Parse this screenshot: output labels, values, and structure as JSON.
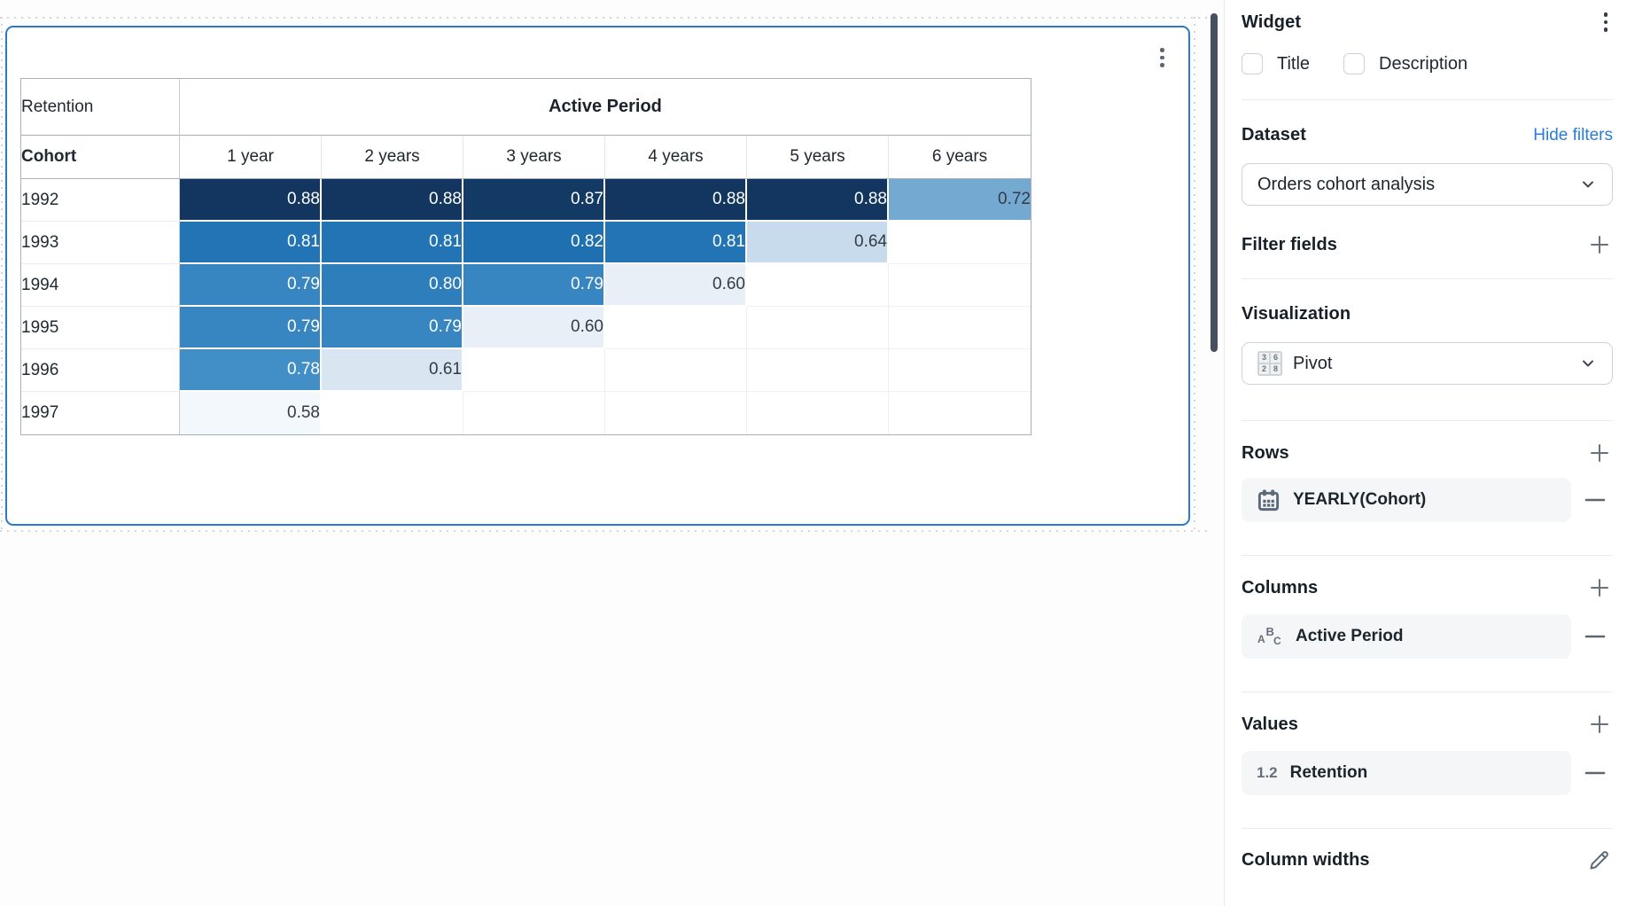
{
  "widget": {
    "table": {
      "corner_label": "Retention",
      "group_label": "Active Period",
      "row_header": "Cohort",
      "column_headers": [
        "1 year",
        "2 years",
        "3 years",
        "4 years",
        "5 years",
        "6 years"
      ],
      "rows": [
        {
          "label": "1992",
          "cells": [
            {
              "v": "0.88",
              "bg": "#12365f",
              "light": true
            },
            {
              "v": "0.88",
              "bg": "#12365f",
              "light": true
            },
            {
              "v": "0.87",
              "bg": "#133965",
              "light": true
            },
            {
              "v": "0.88",
              "bg": "#12365f",
              "light": true
            },
            {
              "v": "0.88",
              "bg": "#12365f",
              "light": true
            },
            {
              "v": "0.72",
              "bg": "#74aad1",
              "light": false
            }
          ]
        },
        {
          "label": "1993",
          "cells": [
            {
              "v": "0.81",
              "bg": "#2274b4",
              "light": true
            },
            {
              "v": "0.81",
              "bg": "#2274b4",
              "light": true
            },
            {
              "v": "0.82",
              "bg": "#1f70b1",
              "light": true
            },
            {
              "v": "0.81",
              "bg": "#2274b4",
              "light": true
            },
            {
              "v": "0.64",
              "bg": "#c7dbed",
              "light": false
            },
            null
          ]
        },
        {
          "label": "1994",
          "cells": [
            {
              "v": "0.79",
              "bg": "#3785c1",
              "light": true
            },
            {
              "v": "0.80",
              "bg": "#2e7ebc",
              "light": true
            },
            {
              "v": "0.79",
              "bg": "#3785c1",
              "light": true
            },
            {
              "v": "0.60",
              "bg": "#e8eff7",
              "light": false
            },
            null,
            null
          ]
        },
        {
          "label": "1995",
          "cells": [
            {
              "v": "0.79",
              "bg": "#3785c1",
              "light": true
            },
            {
              "v": "0.79",
              "bg": "#3785c1",
              "light": true
            },
            {
              "v": "0.60",
              "bg": "#e8eff7",
              "light": false
            },
            null,
            null,
            null
          ]
        },
        {
          "label": "1996",
          "cells": [
            {
              "v": "0.78",
              "bg": "#428fc7",
              "light": true
            },
            {
              "v": "0.61",
              "bg": "#d9e6f2",
              "light": false
            },
            null,
            null,
            null,
            null
          ]
        },
        {
          "label": "1997",
          "cells": [
            {
              "v": "0.58",
              "bg": "#f3f8fc",
              "light": false
            },
            null,
            null,
            null,
            null,
            null
          ]
        }
      ]
    }
  },
  "sidebar": {
    "title": "Widget",
    "checkboxes": [
      {
        "label": "Title",
        "checked": false
      },
      {
        "label": "Description",
        "checked": false
      }
    ],
    "dataset": {
      "heading": "Dataset",
      "action_link": "Hide filters",
      "selected": "Orders cohort analysis"
    },
    "filter_fields": {
      "heading": "Filter fields"
    },
    "visualization": {
      "heading": "Visualization",
      "selected": "Pivot",
      "icon_cells": [
        "3",
        "6",
        "2",
        "8"
      ]
    },
    "rows_section": {
      "heading": "Rows",
      "items": [
        {
          "label": "YEARLY(Cohort)"
        }
      ]
    },
    "columns_section": {
      "heading": "Columns",
      "items": [
        {
          "label": "Active Period"
        }
      ]
    },
    "values_section": {
      "heading": "Values",
      "items": [
        {
          "prefix": "1.2",
          "label": "Retention"
        }
      ]
    },
    "column_widths": {
      "heading": "Column widths"
    },
    "colors": {
      "accent_blue": "#2a78cf",
      "link_blue": "#2b7cd9",
      "dark_cell_text": "#ffffff",
      "light_cell_text": "#333b44"
    }
  }
}
